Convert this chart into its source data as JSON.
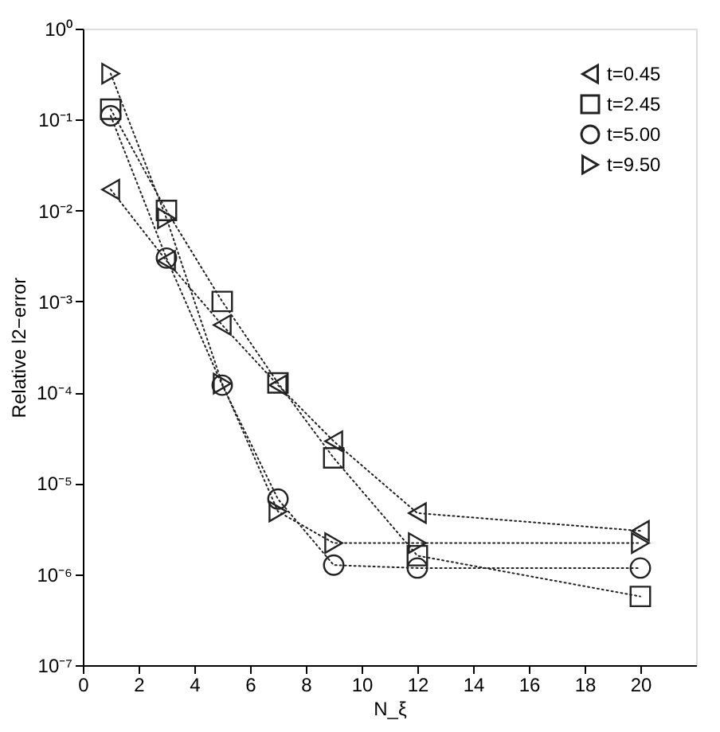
{
  "chart_data": {
    "type": "line",
    "xlabel": "N_ξ",
    "ylabel": "Relative l2−error",
    "x": [
      1,
      3,
      5,
      7,
      9,
      12,
      20
    ],
    "series": [
      {
        "name": "t=0.45",
        "color": "#222222",
        "marker": "triangle-left",
        "values": [
          0.017,
          0.0028,
          0.00055,
          0.00012,
          2.9e-05,
          4.7e-06,
          3e-06
        ]
      },
      {
        "name": "t=2.45",
        "color": "#222222",
        "marker": "square",
        "values": [
          0.13,
          0.01,
          0.001,
          0.000127,
          1.9e-05,
          1.6e-06,
          5.7e-07
        ]
      },
      {
        "name": "t=5.00",
        "color": "#222222",
        "marker": "circle",
        "values": [
          0.11,
          0.003,
          0.00012,
          6.7e-06,
          1.26e-06,
          1.17e-06,
          1.17e-06
        ]
      },
      {
        "name": "t=9.50",
        "color": "#222222",
        "marker": "triangle-right",
        "values": [
          0.32,
          0.0082,
          0.000125,
          4.9e-06,
          2.2e-06,
          2.2e-06,
          2.2e-06
        ]
      }
    ],
    "log": "y",
    "line_style": "dotted",
    "grid": false,
    "legend": "top right",
    "xlim": [
      0,
      22
    ],
    "xticks": [
      0,
      2,
      4,
      6,
      8,
      10,
      12,
      14,
      16,
      18,
      20
    ],
    "ylim": [
      1e-07,
      1
    ],
    "yticks": [
      {
        "value": 1e-07,
        "label": "10⁻⁷"
      },
      {
        "value": 1e-06,
        "label": "10⁻⁶"
      },
      {
        "value": 1e-05,
        "label": "10⁻⁵"
      },
      {
        "value": 0.0001,
        "label": "10⁻⁴"
      },
      {
        "value": 0.001,
        "label": "10⁻³"
      },
      {
        "value": 0.01,
        "label": "10⁻²"
      },
      {
        "value": 0.1,
        "label": "10⁻¹"
      },
      {
        "value": 1,
        "label": "10⁰"
      }
    ]
  }
}
